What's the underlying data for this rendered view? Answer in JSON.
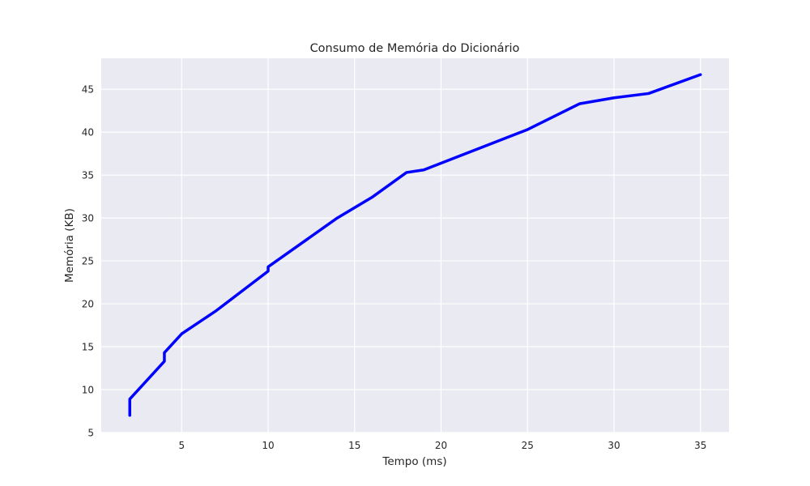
{
  "chart_data": {
    "type": "line",
    "title": "Consumo de Memória do Dicionário",
    "xlabel": "Tempo (ms)",
    "ylabel": "Memória (KB)",
    "xlim": [
      0.35,
      36.65
    ],
    "ylim": [
      5,
      48.6
    ],
    "xticks": [
      5,
      10,
      15,
      20,
      25,
      30,
      35
    ],
    "yticks": [
      5,
      10,
      15,
      20,
      25,
      30,
      35,
      40,
      45
    ],
    "grid": true,
    "series": [
      {
        "color": "#0000ff",
        "x": [
          2,
          2,
          4,
          4,
          5,
          7,
          10,
          10,
          14,
          16,
          18,
          19,
          25,
          28,
          30,
          32,
          35
        ],
        "y": [
          7.0,
          8.9,
          13.3,
          14.3,
          16.5,
          19.2,
          23.8,
          24.3,
          30.0,
          32.4,
          35.3,
          35.6,
          40.3,
          43.3,
          44.0,
          44.5,
          46.7
        ]
      }
    ]
  }
}
